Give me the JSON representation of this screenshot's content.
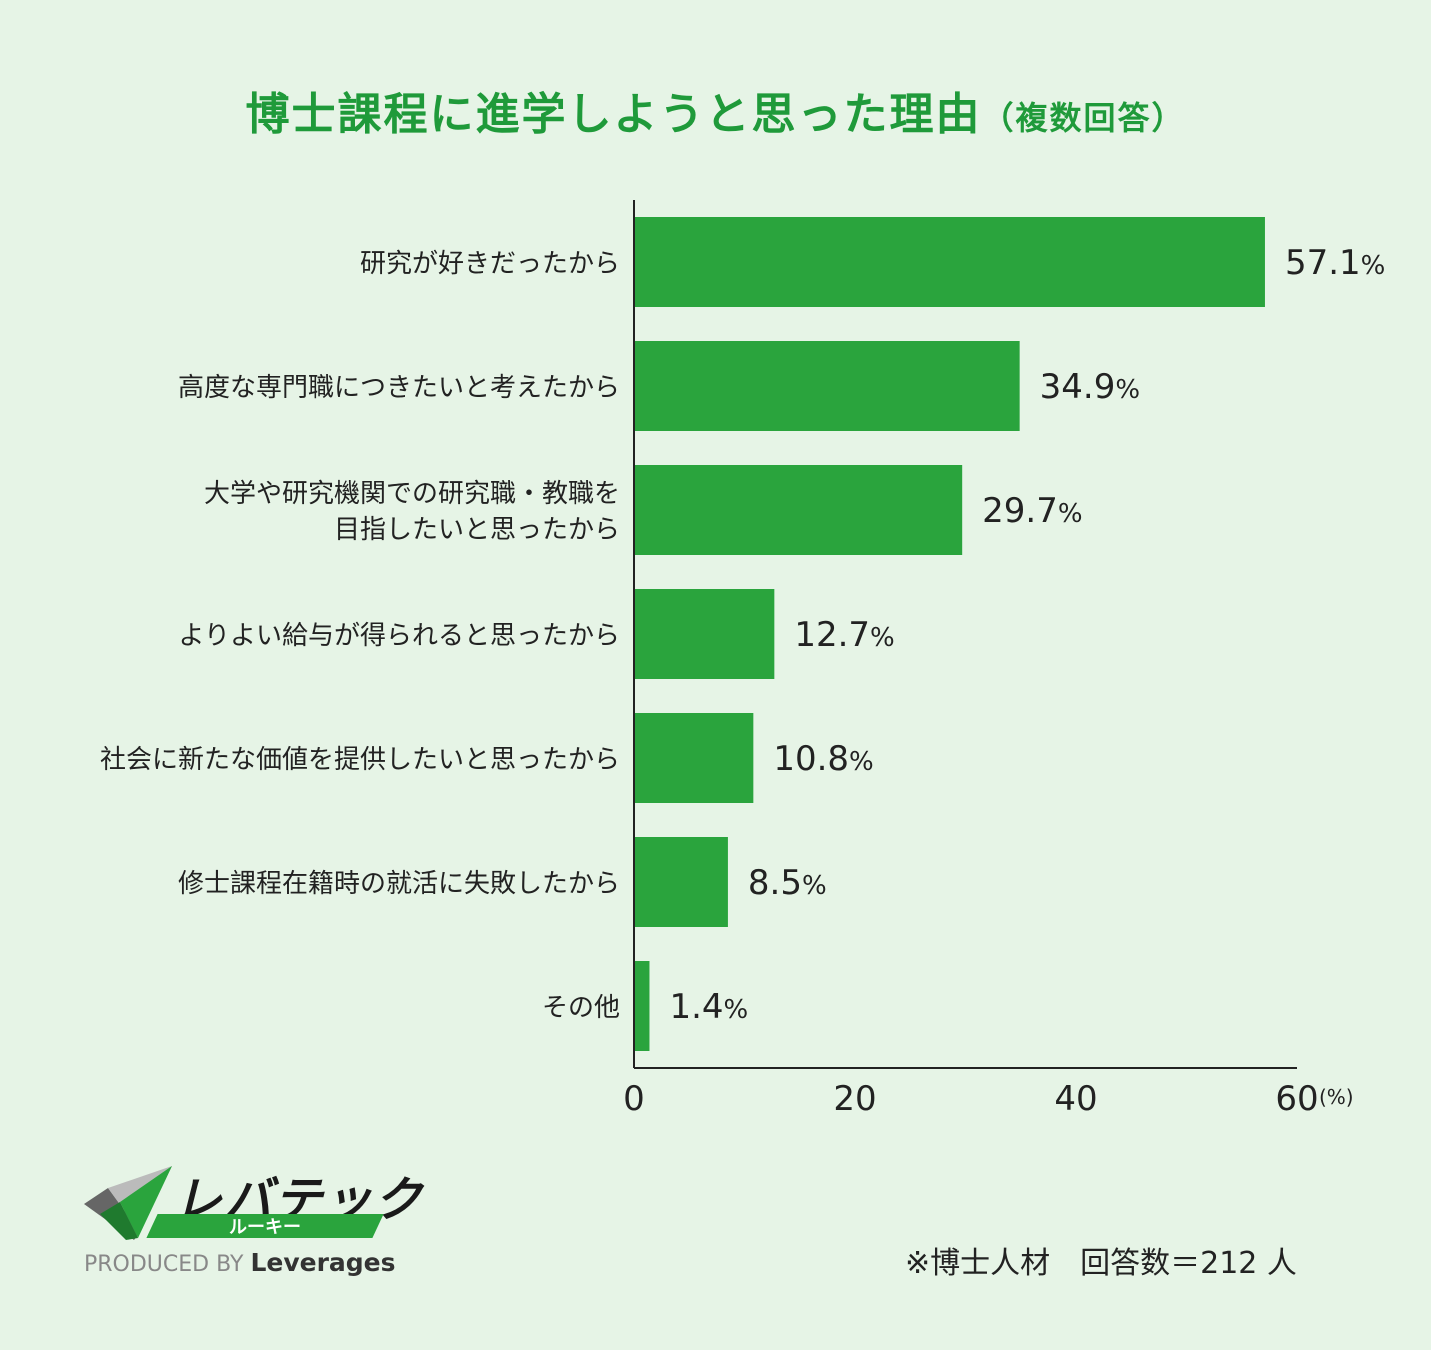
{
  "header": {
    "title": "博士課程に進学しようと思った理由",
    "subtitle": "（複数回答）"
  },
  "chart_data": {
    "type": "bar",
    "orientation": "horizontal",
    "categories": [
      [
        "研究が好きだったから"
      ],
      [
        "高度な専門職につきたいと考えたから"
      ],
      [
        "大学や研究機関での研究職・教職を",
        "目指したいと思ったから"
      ],
      [
        "よりよい給与が得られると思ったから"
      ],
      [
        "社会に新たな価値を提供したいと思ったから"
      ],
      [
        "修士課程在籍時の就活に失敗したから"
      ],
      [
        "その他"
      ]
    ],
    "values": [
      57.1,
      34.9,
      29.7,
      12.7,
      10.8,
      8.5,
      1.4
    ],
    "value_labels": [
      "57.1",
      "34.9",
      "29.7",
      "12.7",
      "10.8",
      "8.5",
      "1.4"
    ],
    "value_unit": "%",
    "xlim": [
      0,
      60
    ],
    "xticks": [
      "0",
      "20",
      "40",
      "60"
    ],
    "x_unit_label": "(%)",
    "grid": false,
    "bar_color": "#2aa43d"
  },
  "footnote": "※博士人材　回答数＝212 人",
  "logo": {
    "wordmark": "レバテック",
    "sub": "ルーキー",
    "produced_by": "PRODUCED BY",
    "brand": "Leverages",
    "colors": {
      "green": "#2aa43d",
      "dark": "#333333",
      "gray": "#999999"
    }
  }
}
